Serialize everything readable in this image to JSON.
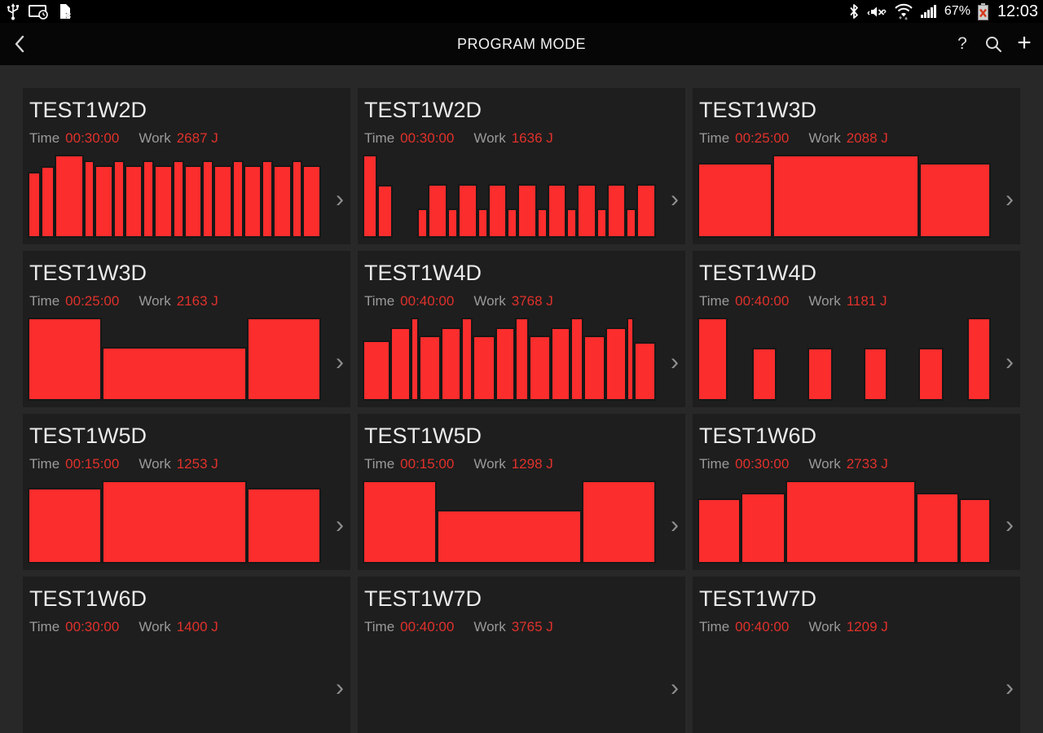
{
  "colors": {
    "bar_fill": "#fb2d2d",
    "value_red": "#e0312b",
    "card_bg": "#1e1e1e",
    "page_bg": "#282828",
    "status_bar_bg": "#000000",
    "action_bar_bg": "#060606"
  },
  "status_bar": {
    "left_icons": [
      "usb-icon",
      "screen-cast-clock-icon",
      "no-sim-icon"
    ],
    "right_icons": [
      "bluetooth-icon",
      "mute-vibrate-icon",
      "wifi-arrows-icon",
      "signal-strength-icon"
    ],
    "battery_percent": "67%",
    "battery_state": "error-x",
    "time": "12:03"
  },
  "action_bar": {
    "title": "PROGRAM MODE",
    "back": "back",
    "help_label": "?",
    "search": "search",
    "add_label": "+"
  },
  "labels": {
    "time": "Time",
    "work": "Work",
    "chevron": "›"
  },
  "cards": [
    {
      "title": "TEST1W2D",
      "time": "00:30:00",
      "work": "2687 J",
      "bars": [
        [
          1,
          0.79
        ],
        [
          1,
          0.86
        ],
        [
          2.6,
          1
        ],
        [
          0.75,
          0.93
        ],
        [
          1.5,
          0.87
        ],
        [
          0.8,
          0.93
        ],
        [
          1.5,
          0.87
        ],
        [
          0.8,
          0.93
        ],
        [
          1.5,
          0.87
        ],
        [
          0.8,
          0.93
        ],
        [
          1.5,
          0.87
        ],
        [
          0.8,
          0.93
        ],
        [
          1.5,
          0.87
        ],
        [
          0.8,
          0.93
        ],
        [
          1.5,
          0.87
        ],
        [
          0.8,
          0.93
        ],
        [
          1.5,
          0.87
        ],
        [
          0.8,
          0.93
        ],
        [
          1.5,
          0.87
        ]
      ]
    },
    {
      "title": "TEST1W2D",
      "time": "00:30:00",
      "work": "1636 J",
      "bars": [
        [
          0.9,
          1
        ],
        [
          1,
          0.64
        ],
        [
          2,
          0
        ],
        [
          0.65,
          0.35
        ],
        [
          1.3,
          0.65
        ],
        [
          0.6,
          0.35
        ],
        [
          1.3,
          0.65
        ],
        [
          0.6,
          0.35
        ],
        [
          1.3,
          0.65
        ],
        [
          0.6,
          0.35
        ],
        [
          1.3,
          0.65
        ],
        [
          0.6,
          0.35
        ],
        [
          1.3,
          0.65
        ],
        [
          0.6,
          0.35
        ],
        [
          1.3,
          0.65
        ],
        [
          0.6,
          0.35
        ],
        [
          1.3,
          0.65
        ],
        [
          0.6,
          0.35
        ],
        [
          1.3,
          0.65
        ]
      ]
    },
    {
      "title": "TEST1W3D",
      "time": "00:25:00",
      "work": "2088 J",
      "bars": [
        [
          1.05,
          0.9
        ],
        [
          2.1,
          1
        ],
        [
          1,
          0.9
        ]
      ]
    },
    {
      "title": "TEST1W3D",
      "time": "00:25:00",
      "work": "2163 J",
      "bars": [
        [
          1,
          1
        ],
        [
          2,
          0.65
        ],
        [
          1,
          1
        ]
      ]
    },
    {
      "title": "TEST1W4D",
      "time": "00:40:00",
      "work": "3768 J",
      "bars": [
        [
          4.2,
          0.73
        ],
        [
          3,
          0.88
        ],
        [
          0.8,
          1
        ],
        [
          3.2,
          0.78
        ],
        [
          3,
          0.88
        ],
        [
          1.4,
          1
        ],
        [
          3.4,
          0.78
        ],
        [
          2.8,
          0.88
        ],
        [
          1.8,
          1
        ],
        [
          3.2,
          0.78
        ],
        [
          2.8,
          0.88
        ],
        [
          1.8,
          1
        ],
        [
          3.2,
          0.78
        ],
        [
          3,
          0.88
        ],
        [
          0.8,
          1
        ],
        [
          3.2,
          0.71
        ]
      ]
    },
    {
      "title": "TEST1W4D",
      "time": "00:40:00",
      "work": "1181 J",
      "bars": [
        [
          3.6,
          1
        ],
        [
          3.2,
          0
        ],
        [
          2.9,
          0.64
        ],
        [
          4.1,
          0
        ],
        [
          2.9,
          0.64
        ],
        [
          4.1,
          0
        ],
        [
          2.8,
          0.64
        ],
        [
          4.1,
          0
        ],
        [
          2.9,
          0.64
        ],
        [
          3.2,
          0
        ],
        [
          2.7,
          1
        ]
      ]
    },
    {
      "title": "TEST1W5D",
      "time": "00:15:00",
      "work": "1253 J",
      "bars": [
        [
          1.05,
          0.91
        ],
        [
          2.1,
          1
        ],
        [
          1.05,
          0.91
        ]
      ]
    },
    {
      "title": "TEST1W5D",
      "time": "00:15:00",
      "work": "1298 J",
      "bars": [
        [
          1,
          1
        ],
        [
          2,
          0.65
        ],
        [
          1,
          1
        ]
      ]
    },
    {
      "title": "TEST1W6D",
      "time": "00:30:00",
      "work": "2733 J",
      "bars": [
        [
          3.1,
          0.78
        ],
        [
          3.2,
          0.85
        ],
        [
          9.8,
          1
        ],
        [
          3.1,
          0.85
        ],
        [
          2.2,
          0.78
        ]
      ]
    },
    {
      "title": "TEST1W6D",
      "time": "00:30:00",
      "work": "1400 J",
      "bars": []
    },
    {
      "title": "TEST1W7D",
      "time": "00:40:00",
      "work": "3765 J",
      "bars": []
    },
    {
      "title": "TEST1W7D",
      "time": "00:40:00",
      "work": "1209 J",
      "bars": []
    }
  ]
}
